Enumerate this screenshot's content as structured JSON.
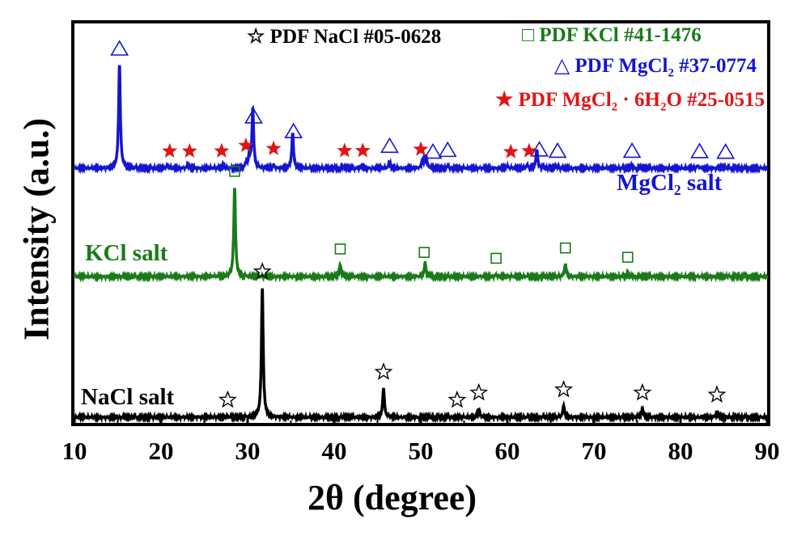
{
  "chart_data": {
    "type": "line",
    "xlabel": "2θ (degree)",
    "ylabel": "Intensity (a.u.)",
    "xlim": [
      10,
      90
    ],
    "xticks": [
      10,
      20,
      30,
      40,
      50,
      60,
      70,
      80,
      90
    ],
    "legend": {
      "placement": "top-right",
      "entries": [
        {
          "symbol": "☆",
          "pre": "PDF NaCl #05-0628",
          "sub": "",
          "mid": "",
          "sub2": "",
          "post": "",
          "color": "#000000"
        },
        {
          "symbol": "□",
          "pre": "PDF KCl #41-1476",
          "sub": "",
          "mid": "",
          "sub2": "",
          "post": "",
          "color": "#1a7a1a"
        },
        {
          "symbol": "△",
          "pre": "PDF MgCl",
          "sub": "2",
          "mid": " #37-0774",
          "sub2": "",
          "post": "",
          "color": "#1515d0"
        },
        {
          "symbol": "★",
          "pre": "PDF MgCl",
          "sub": "2",
          "mid": " ·  6H",
          "sub2": "2",
          "post": "O  #25-0515",
          "color": "#e01515"
        }
      ]
    },
    "series": [
      {
        "name_pre": "MgCl",
        "name_sub": "2",
        "name_post": " salt",
        "color": "#1515d0",
        "peaks": [
          [
            15.2,
            100
          ],
          [
            20.8,
            3
          ],
          [
            23.1,
            3
          ],
          [
            27.2,
            3
          ],
          [
            29.8,
            4
          ],
          [
            30.6,
            57
          ],
          [
            30.2,
            12
          ],
          [
            33.0,
            3
          ],
          [
            35.2,
            34
          ],
          [
            41.1,
            2
          ],
          [
            43.2,
            2
          ],
          [
            46.4,
            6
          ],
          [
            50.2,
            8
          ],
          [
            50.6,
            12
          ],
          [
            53.1,
            2
          ],
          [
            60.0,
            2
          ],
          [
            62.3,
            3
          ],
          [
            63.4,
            18
          ],
          [
            65.7,
            2
          ],
          [
            74.3,
            2
          ],
          [
            82.0,
            3
          ],
          [
            84.9,
            2
          ]
        ],
        "markers": [
          {
            "symbol": "△",
            "color": "#1515d0",
            "x": [
              15.2,
              30.7,
              35.3,
              46.4,
              51.4,
              53.1,
              63.7,
              65.8,
              74.4,
              82.2,
              85.2
            ]
          },
          {
            "symbol": "★",
            "color": "#e01515",
            "x": [
              21.0,
              23.3,
              27.0,
              29.8,
              33.0,
              41.2,
              43.3,
              50.0,
              60.4,
              62.5
            ]
          }
        ]
      },
      {
        "name_pre": "KCl salt",
        "name_sub": "",
        "name_post": "",
        "color": "#1a7a1a",
        "peaks": [
          [
            28.5,
            86
          ],
          [
            40.7,
            11
          ],
          [
            50.5,
            13
          ],
          [
            58.7,
            2
          ],
          [
            66.7,
            12
          ],
          [
            73.9,
            3
          ]
        ],
        "markers": [
          {
            "symbol": "□",
            "color": "#1a7a1a",
            "x": [
              28.5,
              40.7,
              50.4,
              58.7,
              66.7,
              73.9
            ]
          }
        ]
      },
      {
        "name_pre": "NaCl salt",
        "name_sub": "",
        "name_post": "",
        "color": "#000000",
        "peaks": [
          [
            27.7,
            1
          ],
          [
            31.7,
            125
          ],
          [
            45.7,
            28
          ],
          [
            54.2,
            1
          ],
          [
            56.7,
            8
          ],
          [
            66.5,
            11
          ],
          [
            75.6,
            8
          ],
          [
            84.2,
            6
          ]
        ],
        "markers": [
          {
            "symbol": "☆",
            "color": "#000000",
            "x": [
              27.7,
              31.7,
              45.7,
              54.2,
              56.7,
              66.5,
              75.6,
              84.2
            ]
          }
        ]
      }
    ]
  }
}
